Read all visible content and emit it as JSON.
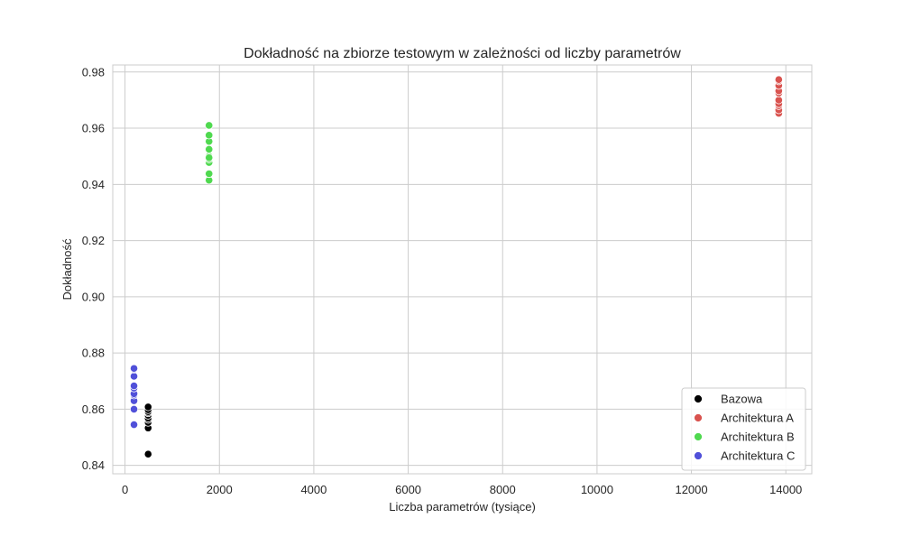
{
  "chart_data": {
    "type": "scatter",
    "title": "Dokładność na zbiorze testowym w zależności od liczby parametrów",
    "xlabel": "Liczba parametrów (tysiące)",
    "ylabel": "Dokładność",
    "xlim": [
      -260,
      14550
    ],
    "ylim": [
      0.837,
      0.9825
    ],
    "x_ticks": [
      0,
      2000,
      4000,
      6000,
      8000,
      10000,
      12000,
      14000
    ],
    "x_tick_labels": [
      "0",
      "2000",
      "4000",
      "6000",
      "8000",
      "10000",
      "12000",
      "14000"
    ],
    "y_ticks": [
      0.84,
      0.86,
      0.88,
      0.9,
      0.92,
      0.94,
      0.96,
      0.98
    ],
    "y_tick_labels": [
      "0.84",
      "0.86",
      "0.88",
      "0.90",
      "0.92",
      "0.94",
      "0.96",
      "0.98"
    ],
    "grid": true,
    "legend_position": "lower-right",
    "series": [
      {
        "name": "Bazowa",
        "color": "#000000",
        "x": [
          490,
          490,
          490,
          490,
          490,
          490,
          490,
          490,
          490,
          490
        ],
        "y": [
          0.844,
          0.8533,
          0.8553,
          0.8563,
          0.8568,
          0.8578,
          0.8587,
          0.8591,
          0.8598,
          0.8608
        ]
      },
      {
        "name": "Architektura A",
        "color": "#d9534f",
        "x": [
          13850,
          13850,
          13850,
          13850,
          13850,
          13850,
          13850,
          13850,
          13850,
          13850
        ],
        "y": [
          0.9653,
          0.9665,
          0.968,
          0.9687,
          0.97,
          0.9725,
          0.9733,
          0.9752,
          0.9768,
          0.9773
        ]
      },
      {
        "name": "Architektura B",
        "color": "#4fd94f",
        "x": [
          1780,
          1780,
          1780,
          1780,
          1780,
          1780,
          1780,
          1780,
          1780,
          1780
        ],
        "y": [
          0.9415,
          0.9438,
          0.9478,
          0.949,
          0.95,
          0.9525,
          0.9553,
          0.9575,
          0.961,
          0.9495
        ]
      },
      {
        "name": "Architektura C",
        "color": "#5050d9",
        "x": [
          190,
          190,
          190,
          190,
          190,
          190,
          190,
          190,
          190,
          190
        ],
        "y": [
          0.8545,
          0.86,
          0.863,
          0.865,
          0.8655,
          0.8675,
          0.8683,
          0.8717,
          0.8742,
          0.8745
        ]
      }
    ]
  }
}
